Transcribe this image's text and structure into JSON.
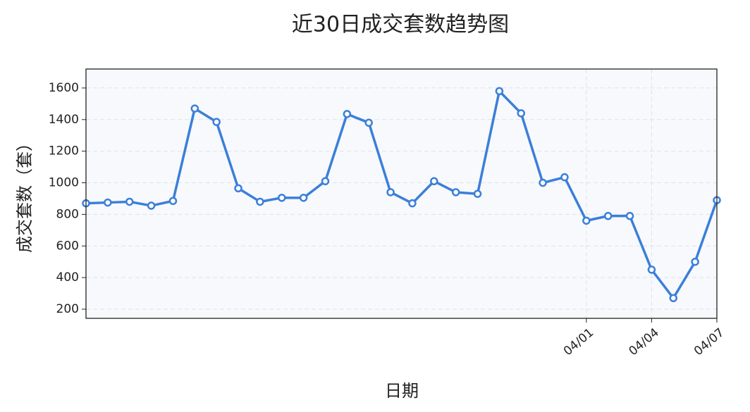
{
  "chart_data": {
    "type": "line",
    "title": "近30日成交套数趋势图",
    "x_label": "日期",
    "y_label": "成交套数（套）",
    "categories": [
      null,
      null,
      null,
      null,
      null,
      null,
      null,
      null,
      null,
      null,
      null,
      null,
      null,
      null,
      null,
      null,
      null,
      null,
      null,
      null,
      null,
      null,
      null,
      "04/01",
      null,
      null,
      "04/04",
      null,
      null,
      "04/07"
    ],
    "series": [
      {
        "name": "成交套数",
        "color": "#3b7fd9",
        "values": [
          870,
          875,
          880,
          855,
          885,
          1470,
          1385,
          965,
          880,
          905,
          905,
          1010,
          1435,
          1380,
          940,
          870,
          1010,
          940,
          930,
          1580,
          1440,
          1000,
          1035,
          760,
          790,
          790,
          450,
          270,
          500,
          890
        ]
      }
    ],
    "ylim": [
      142,
      1720
    ],
    "yticks": [
      200,
      400,
      600,
      800,
      1000,
      1200,
      1400,
      1600
    ],
    "grid": true
  }
}
